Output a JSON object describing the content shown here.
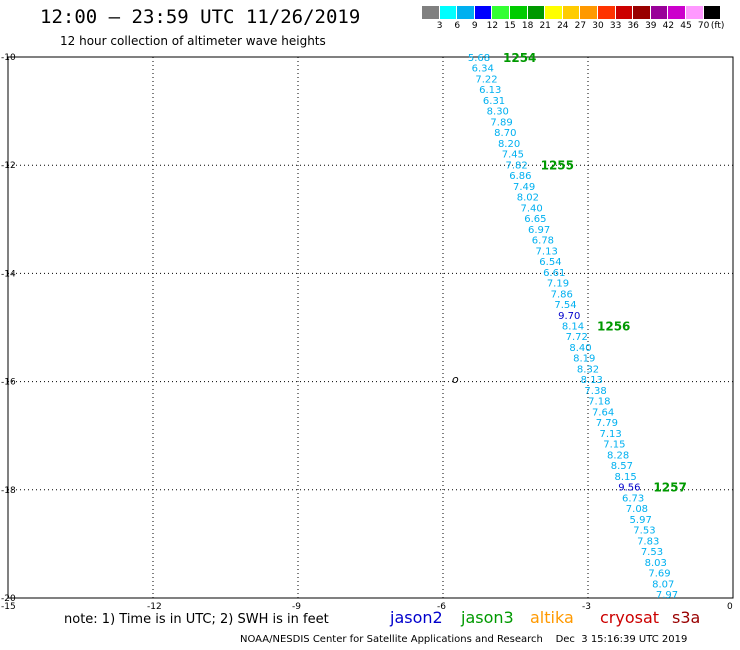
{
  "header": {
    "title": "12:00 – 23:59 UTC 11/26/2019",
    "subtitle": "12 hour collection of altimeter wave heights"
  },
  "colorbar": {
    "colors": [
      "#808080",
      "#00ffff",
      "#00b0f0",
      "#0000ff",
      "#33ff33",
      "#00cc00",
      "#009900",
      "#ffff00",
      "#ffcc00",
      "#ff9900",
      "#ff3300",
      "#cc0000",
      "#990000",
      "#990099",
      "#cc00cc",
      "#ff99ff",
      "#000000"
    ],
    "labels": [
      "3",
      "6",
      "9",
      "12",
      "15",
      "18",
      "21",
      "24",
      "27",
      "30",
      "33",
      "36",
      "39",
      "42",
      "45",
      "70",
      "(ft)"
    ]
  },
  "axes": {
    "lat_ticks": [
      "-10",
      "-12",
      "-14",
      "-16",
      "-18",
      "-20"
    ],
    "lon_ticks": [
      "-15",
      "-12",
      "-9",
      "-6",
      "-3",
      "0"
    ]
  },
  "passes": [
    {
      "id": "1254",
      "at_value_index": 0
    },
    {
      "id": "1255",
      "at_value_index": 10
    },
    {
      "id": "1256",
      "at_value_index": 25
    },
    {
      "id": "1257",
      "at_value_index": 40
    }
  ],
  "track_values": [
    {
      "v": "5.68",
      "c": "#00b0f0"
    },
    {
      "v": "6.34",
      "c": "#00b0f0"
    },
    {
      "v": "7.22",
      "c": "#00b0f0"
    },
    {
      "v": "6.13",
      "c": "#00b0f0"
    },
    {
      "v": "6.31",
      "c": "#00b0f0"
    },
    {
      "v": "8.30",
      "c": "#00b0f0"
    },
    {
      "v": "7.89",
      "c": "#00b0f0"
    },
    {
      "v": "8.70",
      "c": "#00b0f0"
    },
    {
      "v": "8.20",
      "c": "#00b0f0"
    },
    {
      "v": "7.45",
      "c": "#00b0f0"
    },
    {
      "v": "7.82",
      "c": "#00b0f0"
    },
    {
      "v": "6.86",
      "c": "#00b0f0"
    },
    {
      "v": "7.49",
      "c": "#00b0f0"
    },
    {
      "v": "8.02",
      "c": "#00b0f0"
    },
    {
      "v": "7.40",
      "c": "#00b0f0"
    },
    {
      "v": "6.65",
      "c": "#00b0f0"
    },
    {
      "v": "6.97",
      "c": "#00b0f0"
    },
    {
      "v": "6.78",
      "c": "#00b0f0"
    },
    {
      "v": "7.13",
      "c": "#00b0f0"
    },
    {
      "v": "6.54",
      "c": "#00b0f0"
    },
    {
      "v": "6.61",
      "c": "#00b0f0"
    },
    {
      "v": "7.19",
      "c": "#00b0f0"
    },
    {
      "v": "7.86",
      "c": "#00b0f0"
    },
    {
      "v": "7.54",
      "c": "#00b0f0"
    },
    {
      "v": "9.70",
      "c": "#0000cc"
    },
    {
      "v": "8.14",
      "c": "#00b0f0"
    },
    {
      "v": "7.72",
      "c": "#00b0f0"
    },
    {
      "v": "8.40",
      "c": "#00b0f0"
    },
    {
      "v": "8.19",
      "c": "#00b0f0"
    },
    {
      "v": "8.32",
      "c": "#00b0f0"
    },
    {
      "v": "8.13",
      "c": "#00b0f0"
    },
    {
      "v": "7.38",
      "c": "#00b0f0"
    },
    {
      "v": "7.18",
      "c": "#00b0f0"
    },
    {
      "v": "7.64",
      "c": "#00b0f0"
    },
    {
      "v": "7.79",
      "c": "#00b0f0"
    },
    {
      "v": "7.13",
      "c": "#00b0f0"
    },
    {
      "v": "7.15",
      "c": "#00b0f0"
    },
    {
      "v": "8.28",
      "c": "#00b0f0"
    },
    {
      "v": "8.57",
      "c": "#00b0f0"
    },
    {
      "v": "8.15",
      "c": "#00b0f0"
    },
    {
      "v": "9.56",
      "c": "#0000cc"
    },
    {
      "v": "6.73",
      "c": "#00b0f0"
    },
    {
      "v": "7.08",
      "c": "#00b0f0"
    },
    {
      "v": "5.97",
      "c": "#00b0f0"
    },
    {
      "v": "7.53",
      "c": "#00b0f0"
    },
    {
      "v": "7.83",
      "c": "#00b0f0"
    },
    {
      "v": "7.53",
      "c": "#00b0f0"
    },
    {
      "v": "8.03",
      "c": "#00b0f0"
    },
    {
      "v": "7.69",
      "c": "#00b0f0"
    },
    {
      "v": "8.07",
      "c": "#00b0f0"
    },
    {
      "v": "7.97",
      "c": "#00b0f0"
    }
  ],
  "island_marker": "o",
  "legend": {
    "note": "note: 1) Time is in UTC; 2) SWH is in feet",
    "satellites": [
      {
        "name": "jason2",
        "color": "#0000cc"
      },
      {
        "name": "jason3",
        "color": "#009900"
      },
      {
        "name": "altika",
        "color": "#ff9900"
      },
      {
        "name": "cryosat",
        "color": "#cc0000"
      },
      {
        "name": "s3a",
        "color": "#990000"
      }
    ]
  },
  "footer": "NOAA/NESDIS Center for Satellite Applications and Research    Dec  3 15:16:39 UTC 2019"
}
